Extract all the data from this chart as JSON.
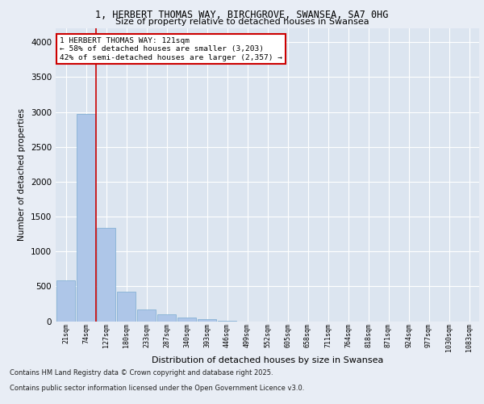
{
  "title_line1": "1, HERBERT THOMAS WAY, BIRCHGROVE, SWANSEA, SA7 0HG",
  "title_line2": "Size of property relative to detached houses in Swansea",
  "xlabel": "Distribution of detached houses by size in Swansea",
  "ylabel": "Number of detached properties",
  "categories": [
    "21sqm",
    "74sqm",
    "127sqm",
    "180sqm",
    "233sqm",
    "287sqm",
    "340sqm",
    "393sqm",
    "446sqm",
    "499sqm",
    "552sqm",
    "605sqm",
    "658sqm",
    "711sqm",
    "764sqm",
    "818sqm",
    "871sqm",
    "924sqm",
    "977sqm",
    "1030sqm",
    "1083sqm"
  ],
  "values": [
    580,
    2970,
    1340,
    420,
    170,
    95,
    50,
    30,
    5,
    0,
    0,
    0,
    0,
    0,
    0,
    0,
    0,
    0,
    0,
    0,
    0
  ],
  "bar_color": "#aec6e8",
  "bar_edge_color": "#7aaad0",
  "vline_color": "#cc0000",
  "annotation_text": "1 HERBERT THOMAS WAY: 121sqm\n← 58% of detached houses are smaller (3,203)\n42% of semi-detached houses are larger (2,357) →",
  "annotation_box_color": "#ffffff",
  "annotation_box_edge": "#cc0000",
  "background_color": "#e8edf5",
  "plot_bg_color": "#dce5f0",
  "grid_color": "#ffffff",
  "footer_line1": "Contains HM Land Registry data © Crown copyright and database right 2025.",
  "footer_line2": "Contains public sector information licensed under the Open Government Licence v3.0.",
  "ylim": [
    0,
    4200
  ],
  "yticks": [
    0,
    500,
    1000,
    1500,
    2000,
    2500,
    3000,
    3500,
    4000
  ]
}
